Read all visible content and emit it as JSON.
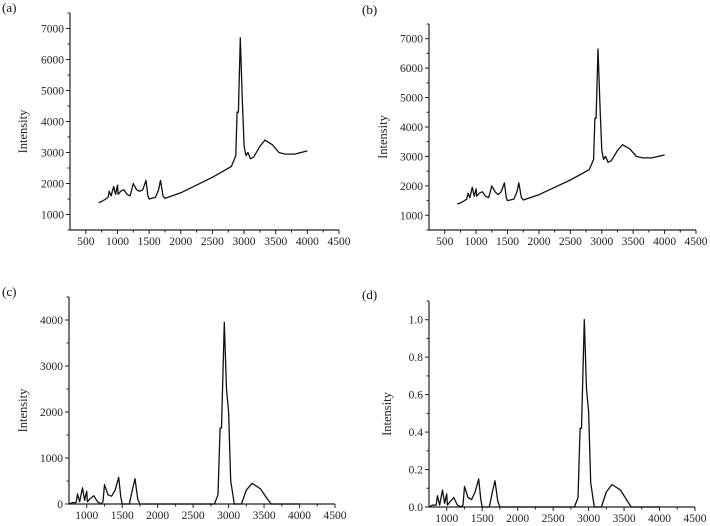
{
  "chart_data": [
    {
      "panel": "(a)",
      "type": "line",
      "title": "",
      "xlabel": "",
      "ylabel": "Intensity",
      "xlim": [
        250,
        4500
      ],
      "ylim": [
        500,
        7500
      ],
      "xticks": [
        500,
        1000,
        1500,
        2000,
        2500,
        3000,
        3500,
        4000,
        4500
      ],
      "yticks": [
        1000,
        2000,
        3000,
        4000,
        5000,
        6000,
        7000
      ],
      "x": [
        700,
        750,
        800,
        850,
        870,
        900,
        940,
        970,
        1000,
        1010,
        1050,
        1100,
        1150,
        1200,
        1250,
        1300,
        1350,
        1400,
        1450,
        1480,
        1500,
        1600,
        1650,
        1680,
        1720,
        1750,
        2000,
        2500,
        2800,
        2870,
        2890,
        2910,
        2940,
        2970,
        3000,
        3030,
        3060,
        3100,
        3150,
        3250,
        3330,
        3450,
        3550,
        3650,
        3800,
        3900,
        4000
      ],
      "y": [
        1380,
        1420,
        1480,
        1550,
        1750,
        1600,
        1900,
        1650,
        1950,
        1650,
        1750,
        1800,
        1650,
        1600,
        2000,
        1800,
        1750,
        1800,
        2100,
        1600,
        1500,
        1550,
        1800,
        2100,
        1600,
        1520,
        1700,
        2200,
        2550,
        2900,
        4300,
        4300,
        6700,
        4800,
        3200,
        2900,
        3000,
        2800,
        2850,
        3200,
        3400,
        3250,
        3000,
        2950,
        2950,
        3000,
        3050
      ]
    },
    {
      "panel": "(b)",
      "type": "line",
      "title": "",
      "xlabel": "",
      "ylabel": "Intensity",
      "xlim": [
        250,
        4500
      ],
      "ylim": [
        500,
        7500
      ],
      "xticks": [
        500,
        1000,
        1500,
        2000,
        2500,
        3000,
        3500,
        4000,
        4500
      ],
      "yticks": [
        1000,
        2000,
        3000,
        4000,
        5000,
        6000,
        7000
      ],
      "x": [
        700,
        750,
        800,
        850,
        870,
        900,
        940,
        970,
        1000,
        1010,
        1050,
        1100,
        1150,
        1200,
        1250,
        1300,
        1350,
        1400,
        1450,
        1480,
        1500,
        1600,
        1650,
        1680,
        1720,
        1750,
        2000,
        2500,
        2800,
        2870,
        2890,
        2910,
        2940,
        2970,
        3000,
        3030,
        3060,
        3100,
        3150,
        3250,
        3330,
        3450,
        3550,
        3650,
        3800,
        3900,
        4000
      ],
      "y": [
        1380,
        1420,
        1480,
        1550,
        1750,
        1600,
        1950,
        1650,
        1900,
        1650,
        1750,
        1800,
        1650,
        1600,
        2000,
        1800,
        1700,
        1800,
        2100,
        1600,
        1500,
        1550,
        1800,
        2100,
        1600,
        1520,
        1700,
        2200,
        2550,
        2900,
        4300,
        4300,
        6650,
        4800,
        3200,
        2900,
        3000,
        2800,
        2850,
        3200,
        3400,
        3250,
        3000,
        2950,
        2950,
        3000,
        3050
      ]
    },
    {
      "panel": "(c)",
      "type": "line",
      "title": "",
      "xlabel": "",
      "ylabel": "Intensity",
      "xlim": [
        750,
        4500
      ],
      "ylim": [
        0,
        4500
      ],
      "xticks": [
        1000,
        1500,
        2000,
        2500,
        3000,
        3500,
        4000,
        4500
      ],
      "yticks": [
        0,
        1000,
        2000,
        3000,
        4000
      ],
      "x": [
        750,
        800,
        850,
        870,
        900,
        940,
        970,
        1000,
        1010,
        1050,
        1100,
        1150,
        1200,
        1230,
        1250,
        1300,
        1350,
        1400,
        1450,
        1480,
        1500,
        1600,
        1650,
        1680,
        1720,
        1750,
        2800,
        2850,
        2880,
        2900,
        2940,
        2970,
        3000,
        3030,
        3060,
        3080,
        3180,
        3250,
        3330,
        3450,
        3550,
        3600,
        4000
      ],
      "y": [
        0,
        30,
        30,
        220,
        50,
        350,
        80,
        280,
        50,
        120,
        180,
        50,
        0,
        50,
        420,
        200,
        170,
        300,
        580,
        150,
        0,
        0,
        350,
        550,
        100,
        0,
        0,
        200,
        1650,
        1650,
        3950,
        2500,
        2000,
        500,
        200,
        0,
        0,
        300,
        450,
        330,
        100,
        0,
        0
      ]
    },
    {
      "panel": "(d)",
      "type": "line",
      "title": "",
      "xlabel": "",
      "ylabel": "Intensity",
      "xlim": [
        750,
        4500
      ],
      "ylim": [
        0,
        1.1
      ],
      "xticks": [
        1000,
        1500,
        2000,
        2500,
        3000,
        3500,
        4000,
        4500
      ],
      "yticks": [
        0.0,
        0.2,
        0.4,
        0.6,
        0.8,
        1.0
      ],
      "x": [
        750,
        800,
        850,
        870,
        900,
        940,
        970,
        1000,
        1010,
        1050,
        1100,
        1150,
        1200,
        1230,
        1250,
        1300,
        1350,
        1400,
        1450,
        1480,
        1500,
        1600,
        1650,
        1680,
        1720,
        1750,
        2800,
        2850,
        2880,
        2900,
        2940,
        2970,
        3000,
        3030,
        3060,
        3080,
        3180,
        3250,
        3330,
        3450,
        3550,
        3600,
        4000
      ],
      "y": [
        0,
        0.01,
        0.01,
        0.06,
        0.01,
        0.09,
        0.02,
        0.07,
        0.01,
        0.03,
        0.05,
        0.01,
        0,
        0.01,
        0.11,
        0.05,
        0.04,
        0.08,
        0.15,
        0.04,
        0,
        0,
        0.09,
        0.14,
        0.03,
        0,
        0,
        0.05,
        0.42,
        0.42,
        1.0,
        0.63,
        0.51,
        0.13,
        0.05,
        0,
        0,
        0.08,
        0.12,
        0.09,
        0.03,
        0,
        0
      ]
    }
  ]
}
